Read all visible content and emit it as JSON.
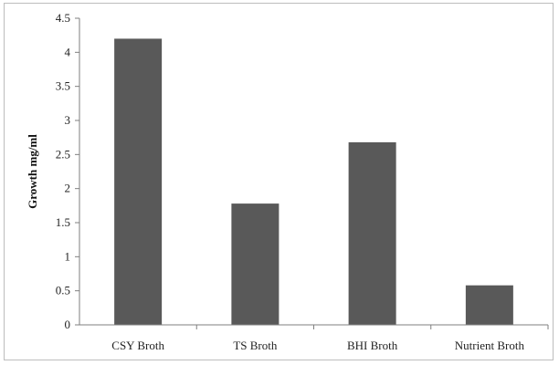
{
  "chart_data": {
    "type": "bar",
    "categories": [
      "CSY Broth",
      "TS Broth",
      "BHI Broth",
      "Nutrient Broth"
    ],
    "values": [
      4.2,
      1.78,
      2.68,
      0.58
    ],
    "title": "",
    "xlabel": "",
    "ylabel": "Growth mg/ml",
    "ylim": [
      0,
      4.5
    ],
    "yticks": [
      "0",
      "0.5",
      "1",
      "1.5",
      "2",
      "2.5",
      "3",
      "3.5",
      "4",
      "4.5"
    ],
    "grid": false,
    "legend": "none",
    "bar_color": "#595959",
    "axis_color": "#7f7f7f"
  }
}
